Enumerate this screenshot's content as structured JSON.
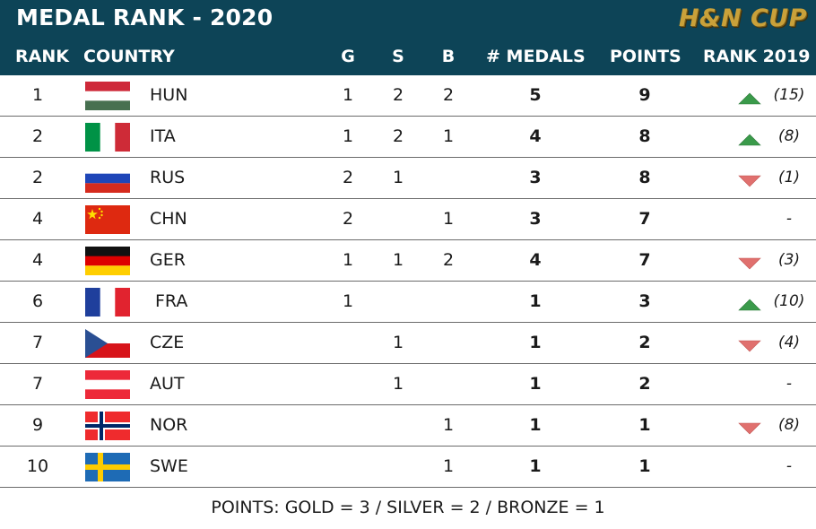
{
  "header": {
    "title": "MEDAL RANK - 2020",
    "logo": "H&N CUP"
  },
  "columns": {
    "rank": "RANK",
    "country": "COUNTRY",
    "g": "G",
    "s": "S",
    "b": "B",
    "medals": "# MEDALS",
    "points": "POINTS",
    "rank2019": "RANK 2019"
  },
  "rows": [
    {
      "rank": "1",
      "country": "HUN",
      "flag": "hun",
      "g": "1",
      "s": "2",
      "b": "2",
      "medals": "5",
      "points": "9",
      "trend": "up",
      "prev": "(15)"
    },
    {
      "rank": "2",
      "country": "ITA",
      "flag": "ita",
      "g": "1",
      "s": "2",
      "b": "1",
      "medals": "4",
      "points": "8",
      "trend": "up",
      "prev": "(8)"
    },
    {
      "rank": "2",
      "country": "RUS",
      "flag": "rus",
      "g": "2",
      "s": "1",
      "b": "",
      "medals": "3",
      "points": "8",
      "trend": "down",
      "prev": "(1)"
    },
    {
      "rank": "4",
      "country": "CHN",
      "flag": "chn",
      "g": "2",
      "s": "",
      "b": "1",
      "medals": "3",
      "points": "7",
      "trend": "none",
      "prev": "-"
    },
    {
      "rank": "4",
      "country": "GER",
      "flag": "ger",
      "g": "1",
      "s": "1",
      "b": "2",
      "medals": "4",
      "points": "7",
      "trend": "down",
      "prev": "(3)"
    },
    {
      "rank": "6",
      "country": "FRA",
      "flag": "fra",
      "g": "1",
      "s": "",
      "b": "",
      "medals": "1",
      "points": "3",
      "trend": "up",
      "prev": "(10)"
    },
    {
      "rank": "7",
      "country": "CZE",
      "flag": "cze",
      "g": "",
      "s": "1",
      "b": "",
      "medals": "1",
      "points": "2",
      "trend": "down",
      "prev": "(4)"
    },
    {
      "rank": "7",
      "country": "AUT",
      "flag": "aut",
      "g": "",
      "s": "1",
      "b": "",
      "medals": "1",
      "points": "2",
      "trend": "none",
      "prev": "-"
    },
    {
      "rank": "9",
      "country": "NOR",
      "flag": "nor",
      "g": "",
      "s": "",
      "b": "1",
      "medals": "1",
      "points": "1",
      "trend": "down",
      "prev": "(8)"
    },
    {
      "rank": "10",
      "country": "SWE",
      "flag": "swe",
      "g": "",
      "s": "",
      "b": "1",
      "medals": "1",
      "points": "1",
      "trend": "none",
      "prev": "-"
    }
  ],
  "footer": "POINTS: GOLD = 3 / SILVER = 2 / BRONZE = 1",
  "colors": {
    "header_bg": "#0d4457",
    "up": "#3a9a4a",
    "down": "#e0706e",
    "logo": "#c9a13a"
  }
}
